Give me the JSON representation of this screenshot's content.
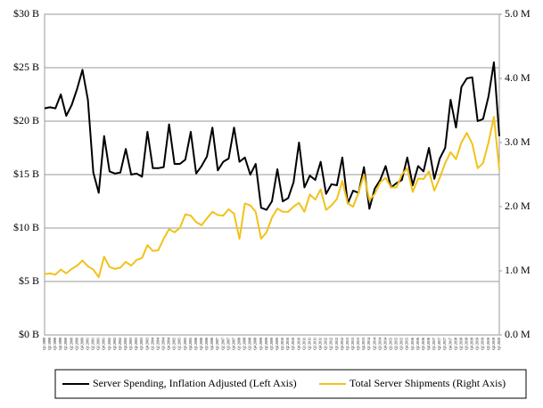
{
  "chart_data": {
    "type": "line",
    "categories": [
      "Q1 1999",
      "Q2 1999",
      "Q3 1999",
      "Q4 1999",
      "Q1 2000",
      "Q2 2000",
      "Q3 2000",
      "Q4 2000",
      "Q1 2001",
      "Q2 2001",
      "Q3 2001",
      "Q4 2001",
      "Q1 2002",
      "Q2 2002",
      "Q3 2002",
      "Q4 2002",
      "Q1 2003",
      "Q2 2003",
      "Q3 2003",
      "Q4 2003",
      "Q1 2004",
      "Q2 2004",
      "Q3 2004",
      "Q4 2004",
      "Q1 2005",
      "Q2 2005",
      "Q3 2005",
      "Q4 2005",
      "Q1 2006",
      "Q2 2006",
      "Q3 2006",
      "Q4 2006",
      "Q1 2007",
      "Q2 2007",
      "Q3 2007",
      "Q4 2007",
      "Q1 2008",
      "Q2 2008",
      "Q3 2008",
      "Q4 2008",
      "Q1 2009",
      "Q2 2009",
      "Q3 2009",
      "Q4 2009",
      "Q1 2010",
      "Q2 2010",
      "Q3 2010",
      "Q4 2010",
      "Q1 2011",
      "Q2 2011",
      "Q3 2011",
      "Q4 2011",
      "Q1 2012",
      "Q2 2012",
      "Q3 2012",
      "Q4 2012",
      "Q1 2013",
      "Q2 2013",
      "Q3 2013",
      "Q4 2013",
      "Q1 2014",
      "Q2 2014",
      "Q3 2014",
      "Q4 2014",
      "Q1 2015",
      "Q2 2015",
      "Q3 2015",
      "Q4 2015",
      "Q1 2016",
      "Q2 2016",
      "Q3 2016",
      "Q4 2016",
      "Q1 2017",
      "Q2 2017",
      "Q3 2017",
      "Q4 2017",
      "Q1 2018",
      "Q2 2018",
      "Q3 2018",
      "Q4 2018",
      "Q1 2019",
      "Q2 2019",
      "Q3 2019",
      "Q4 2019",
      "Q1 2020"
    ],
    "series": [
      {
        "name": "Server Spending, Inflation Adjusted (Left Axis)",
        "color": "#000000",
        "values": [
          21.2,
          21.3,
          21.2,
          22.5,
          20.5,
          21.5,
          23,
          24.8,
          22,
          15.2,
          13.3,
          18.6,
          15.3,
          15.1,
          15.2,
          17.4,
          15,
          15.1,
          14.8,
          19,
          15.6,
          15.6,
          15.7,
          19.7,
          16,
          16,
          16.4,
          19,
          15.1,
          15.8,
          16.7,
          19.4,
          15.4,
          16.2,
          16.5,
          19.4,
          16.2,
          16.6,
          15,
          16,
          11.9,
          11.7,
          12.5,
          15.5,
          12.5,
          12.8,
          14.3,
          18,
          13.8,
          14.9,
          14.5,
          16.2,
          13.2,
          14.1,
          14,
          16.6,
          12.3,
          13.5,
          13.3,
          15.7,
          11.8,
          13.7,
          14.5,
          15.8,
          13.8,
          14.2,
          14.5,
          16.6,
          14,
          15.8,
          15.3,
          17.5,
          14.6,
          16.5,
          17.5,
          22,
          19.4,
          23.2,
          24,
          24.1,
          20,
          20.2,
          22.3,
          25.5,
          18.6
        ]
      },
      {
        "name": "Total Server Shipments (Right Axis)",
        "color": "#f2c219",
        "axis": "y2",
        "values": [
          0.95,
          0.96,
          0.94,
          1.02,
          0.96,
          1.03,
          1.08,
          1.16,
          1.07,
          1.02,
          0.9,
          1.22,
          1.06,
          1.03,
          1.05,
          1.14,
          1.08,
          1.17,
          1.2,
          1.4,
          1.31,
          1.32,
          1.5,
          1.65,
          1.6,
          1.67,
          1.88,
          1.86,
          1.76,
          1.71,
          1.82,
          1.92,
          1.87,
          1.86,
          1.96,
          1.89,
          1.5,
          2.05,
          2.02,
          1.92,
          1.5,
          1.6,
          1.83,
          1.97,
          1.92,
          1.92,
          2.0,
          2.06,
          1.92,
          2.19,
          2.11,
          2.27,
          1.95,
          2.02,
          2.12,
          2.4,
          2.05,
          2.0,
          2.22,
          2.5,
          2.1,
          2.2,
          2.38,
          2.45,
          2.3,
          2.3,
          2.5,
          2.6,
          2.23,
          2.44,
          2.43,
          2.55,
          2.25,
          2.45,
          2.68,
          2.85,
          2.74,
          3.0,
          3.15,
          2.98,
          2.6,
          2.68,
          3.0,
          3.4,
          2.58
        ]
      }
    ],
    "ylim": [
      0,
      30
    ],
    "yticks": [
      {
        "value": 0,
        "label": "$0 B"
      },
      {
        "value": 5,
        "label": "$5 B"
      },
      {
        "value": 10,
        "label": "$10 B"
      },
      {
        "value": 15,
        "label": "$15 B"
      },
      {
        "value": 20,
        "label": "$20 B"
      },
      {
        "value": 25,
        "label": "$25 B"
      },
      {
        "value": 30,
        "label": "$30 B"
      }
    ],
    "y2lim": [
      0,
      5
    ],
    "y2ticks": [
      {
        "value": 0,
        "label": "0.0 M"
      },
      {
        "value": 1,
        "label": "1.0 M"
      },
      {
        "value": 2,
        "label": "2.0 M"
      },
      {
        "value": 3,
        "label": "3.0 M"
      },
      {
        "value": 4,
        "label": "4.0 M"
      },
      {
        "value": 5,
        "label": "5.0 M"
      }
    ],
    "grid": true,
    "legend": "bottom"
  }
}
